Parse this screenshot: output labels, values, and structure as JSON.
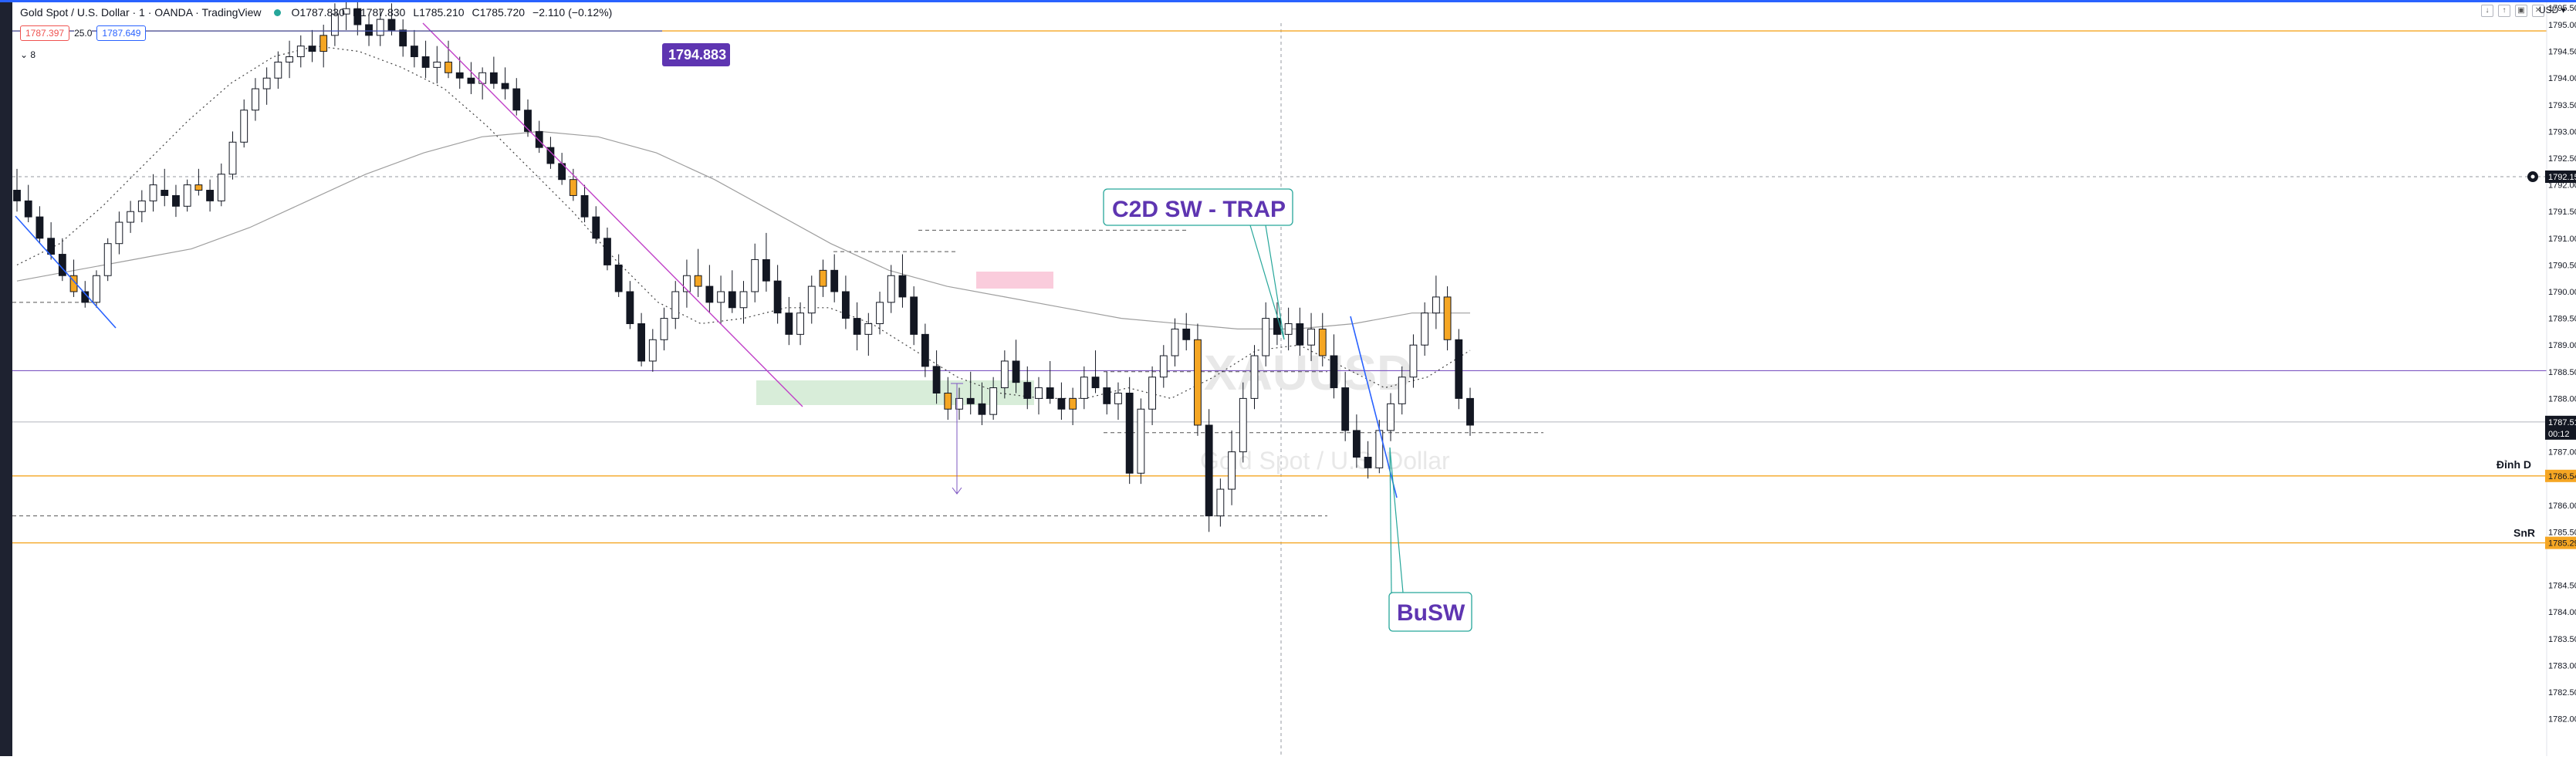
{
  "header": {
    "symbol": "Gold Spot / U.S. Dollar · 1 · OANDA · TradingView",
    "open": "O1787.830",
    "high": "H1787.830",
    "low": "L1785.210",
    "close": "C1785.720",
    "change": "−2.110 (−0.12%)",
    "sell_price": "1787.397",
    "spread": "25.0",
    "buy_price": "1787.649",
    "collapse_label": "8"
  },
  "colors": {
    "up": "#ffffff",
    "down": "#131722",
    "accent_orange": "#f5a623",
    "horizontal_purple": "#7e57c2",
    "trend_purple": "#c040c8",
    "annotation": "#26a69a",
    "annotation_text": "#5e35b1"
  },
  "annotations": {
    "c2d": "C2D SW - TRAP",
    "busw": "BuSW",
    "dinh": "Đỉnh D",
    "snr": "SnR",
    "price_label": "1794.883",
    "watermark_symbol": "XAUUSD",
    "watermark_desc": "Gold Spot / U.S. Dollar"
  },
  "chart_data": {
    "type": "candlestick",
    "title": "Gold Spot / U.S. Dollar · 1 · OANDA · TradingView",
    "ylim": [
      1781.7,
      1795.8
    ],
    "y_ticks": [
      "1795.000",
      "1794.500",
      "1794.000",
      "1793.500",
      "1793.000",
      "1792.500",
      "1792.000",
      "1791.500",
      "1791.000",
      "1790.500",
      "1790.000",
      "1789.500",
      "1789.000",
      "1788.500",
      "1788.000",
      "1787.000",
      "1786.000",
      "1785.500",
      "1784.500",
      "1784.000",
      "1783.500",
      "1783.000",
      "1782.500",
      "1782.000"
    ],
    "price_labels": {
      "current": "1787.515",
      "countdown": "00:12",
      "crosshair": "1792.153",
      "dinh_d": "1786.549",
      "snr": "1785.295",
      "top_cut": "1795.500"
    },
    "horizontal_levels": [
      {
        "name": "1794.883",
        "value": 1794.883
      },
      {
        "name": "Đỉnh D",
        "value": 1786.549
      },
      {
        "name": "SnR",
        "value": 1785.295
      },
      {
        "name": "purple",
        "value": 1788.52
      },
      {
        "name": "crosshair",
        "value": 1792.153
      }
    ],
    "ohlc": [
      [
        1791.9,
        1792.3,
        1791.5,
        1791.7
      ],
      [
        1791.7,
        1792.0,
        1791.3,
        1791.4
      ],
      [
        1791.4,
        1791.6,
        1790.9,
        1791.0
      ],
      [
        1791.0,
        1791.3,
        1790.6,
        1790.7
      ],
      [
        1790.7,
        1791.0,
        1790.2,
        1790.3
      ],
      [
        1790.3,
        1790.6,
        1789.9,
        1790.0
      ],
      [
        1790.0,
        1790.2,
        1789.7,
        1789.8
      ],
      [
        1789.8,
        1790.4,
        1789.7,
        1790.3
      ],
      [
        1790.3,
        1791.0,
        1790.2,
        1790.9
      ],
      [
        1790.9,
        1791.5,
        1790.7,
        1791.3
      ],
      [
        1791.3,
        1791.7,
        1791.1,
        1791.5
      ],
      [
        1791.5,
        1791.9,
        1791.3,
        1791.7
      ],
      [
        1791.7,
        1792.2,
        1791.5,
        1792.0
      ],
      [
        1791.9,
        1792.3,
        1791.6,
        1791.8
      ],
      [
        1791.8,
        1792.0,
        1791.4,
        1791.6
      ],
      [
        1791.6,
        1792.1,
        1791.5,
        1792.0
      ],
      [
        1792.0,
        1792.3,
        1791.8,
        1791.9
      ],
      [
        1791.9,
        1792.1,
        1791.5,
        1791.7
      ],
      [
        1791.7,
        1792.4,
        1791.6,
        1792.2
      ],
      [
        1792.2,
        1793.0,
        1792.1,
        1792.8
      ],
      [
        1792.8,
        1793.6,
        1792.7,
        1793.4
      ],
      [
        1793.4,
        1794.0,
        1793.2,
        1793.8
      ],
      [
        1793.8,
        1794.2,
        1793.5,
        1794.0
      ],
      [
        1794.0,
        1794.5,
        1793.8,
        1794.3
      ],
      [
        1794.3,
        1794.7,
        1794.0,
        1794.4
      ],
      [
        1794.4,
        1794.8,
        1794.2,
        1794.6
      ],
      [
        1794.6,
        1794.9,
        1794.3,
        1794.5
      ],
      [
        1794.5,
        1795.0,
        1794.2,
        1794.8
      ],
      [
        1794.8,
        1795.4,
        1794.6,
        1795.2
      ],
      [
        1795.2,
        1795.6,
        1794.9,
        1795.3
      ],
      [
        1795.3,
        1795.5,
        1794.8,
        1795.0
      ],
      [
        1795.0,
        1795.2,
        1794.6,
        1794.8
      ],
      [
        1794.8,
        1795.3,
        1794.6,
        1795.1
      ],
      [
        1795.1,
        1795.4,
        1794.8,
        1794.9
      ],
      [
        1794.9,
        1795.1,
        1794.4,
        1794.6
      ],
      [
        1794.6,
        1794.9,
        1794.2,
        1794.4
      ],
      [
        1794.4,
        1794.7,
        1794.0,
        1794.2
      ],
      [
        1794.2,
        1794.6,
        1793.9,
        1794.3
      ],
      [
        1794.3,
        1794.7,
        1794.0,
        1794.1
      ],
      [
        1794.1,
        1794.4,
        1793.8,
        1794.0
      ],
      [
        1794.0,
        1794.3,
        1793.7,
        1793.9
      ],
      [
        1793.9,
        1794.2,
        1793.6,
        1794.1
      ],
      [
        1794.1,
        1794.4,
        1793.8,
        1793.9
      ],
      [
        1793.9,
        1794.2,
        1793.6,
        1793.8
      ],
      [
        1793.8,
        1794.0,
        1793.3,
        1793.4
      ],
      [
        1793.4,
        1793.6,
        1792.9,
        1793.0
      ],
      [
        1793.0,
        1793.2,
        1792.6,
        1792.7
      ],
      [
        1792.7,
        1792.9,
        1792.3,
        1792.4
      ],
      [
        1792.4,
        1792.6,
        1792.0,
        1792.1
      ],
      [
        1792.1,
        1792.3,
        1791.7,
        1791.8
      ],
      [
        1791.8,
        1792.0,
        1791.3,
        1791.4
      ],
      [
        1791.4,
        1791.6,
        1790.9,
        1791.0
      ],
      [
        1791.0,
        1791.2,
        1790.4,
        1790.5
      ],
      [
        1790.5,
        1790.7,
        1789.9,
        1790.0
      ],
      [
        1790.0,
        1790.2,
        1789.3,
        1789.4
      ],
      [
        1789.4,
        1789.6,
        1788.6,
        1788.7
      ],
      [
        1788.7,
        1789.3,
        1788.5,
        1789.1
      ],
      [
        1789.1,
        1789.7,
        1788.9,
        1789.5
      ],
      [
        1789.5,
        1790.2,
        1789.3,
        1790.0
      ],
      [
        1790.0,
        1790.6,
        1789.7,
        1790.3
      ],
      [
        1790.3,
        1790.8,
        1789.9,
        1790.1
      ],
      [
        1790.1,
        1790.5,
        1789.6,
        1789.8
      ],
      [
        1789.8,
        1790.3,
        1789.4,
        1790.0
      ],
      [
        1790.0,
        1790.4,
        1789.6,
        1789.7
      ],
      [
        1789.7,
        1790.2,
        1789.4,
        1790.0
      ],
      [
        1790.0,
        1790.9,
        1789.8,
        1790.6
      ],
      [
        1790.6,
        1791.1,
        1790.0,
        1790.2
      ],
      [
        1790.2,
        1790.5,
        1789.4,
        1789.6
      ],
      [
        1789.6,
        1789.9,
        1789.0,
        1789.2
      ],
      [
        1789.2,
        1789.8,
        1789.0,
        1789.6
      ],
      [
        1789.6,
        1790.3,
        1789.4,
        1790.1
      ],
      [
        1790.1,
        1790.6,
        1789.9,
        1790.4
      ],
      [
        1790.4,
        1790.7,
        1789.8,
        1790.0
      ],
      [
        1790.0,
        1790.3,
        1789.3,
        1789.5
      ],
      [
        1789.5,
        1789.8,
        1788.9,
        1789.2
      ],
      [
        1789.2,
        1789.6,
        1788.8,
        1789.4
      ],
      [
        1789.4,
        1790.0,
        1789.2,
        1789.8
      ],
      [
        1789.8,
        1790.5,
        1789.6,
        1790.3
      ],
      [
        1790.3,
        1790.7,
        1789.7,
        1789.9
      ],
      [
        1789.9,
        1790.1,
        1789.0,
        1789.2
      ],
      [
        1789.2,
        1789.4,
        1788.4,
        1788.6
      ],
      [
        1788.6,
        1788.9,
        1787.9,
        1788.1
      ],
      [
        1788.1,
        1788.4,
        1787.6,
        1787.8
      ],
      [
        1787.8,
        1788.2,
        1787.6,
        1788.0
      ],
      [
        1788.0,
        1788.5,
        1787.7,
        1787.9
      ],
      [
        1787.9,
        1788.3,
        1787.5,
        1787.7
      ],
      [
        1787.7,
        1788.4,
        1787.6,
        1788.2
      ],
      [
        1788.2,
        1788.9,
        1788.0,
        1788.7
      ],
      [
        1788.7,
        1789.1,
        1788.1,
        1788.3
      ],
      [
        1788.3,
        1788.6,
        1787.8,
        1788.0
      ],
      [
        1788.0,
        1788.4,
        1787.7,
        1788.2
      ],
      [
        1788.2,
        1788.7,
        1787.9,
        1788.0
      ],
      [
        1788.0,
        1788.3,
        1787.6,
        1787.8
      ],
      [
        1787.8,
        1788.2,
        1787.5,
        1788.0
      ],
      [
        1788.0,
        1788.6,
        1787.8,
        1788.4
      ],
      [
        1788.4,
        1788.9,
        1788.1,
        1788.2
      ],
      [
        1788.2,
        1788.5,
        1787.7,
        1787.9
      ],
      [
        1787.9,
        1788.3,
        1787.6,
        1788.1
      ],
      [
        1788.1,
        1788.4,
        1786.4,
        1786.6
      ],
      [
        1786.6,
        1788.0,
        1786.4,
        1787.8
      ],
      [
        1787.8,
        1788.6,
        1787.5,
        1788.4
      ],
      [
        1788.4,
        1789.0,
        1788.2,
        1788.8
      ],
      [
        1788.8,
        1789.5,
        1788.6,
        1789.3
      ],
      [
        1789.3,
        1789.6,
        1788.9,
        1789.1
      ],
      [
        1789.1,
        1789.4,
        1787.3,
        1787.5
      ],
      [
        1787.5,
        1787.8,
        1785.5,
        1785.8
      ],
      [
        1785.8,
        1786.5,
        1785.6,
        1786.3
      ],
      [
        1786.3,
        1787.4,
        1786.0,
        1787.0
      ],
      [
        1787.0,
        1788.3,
        1786.8,
        1788.0
      ],
      [
        1788.0,
        1789.0,
        1787.8,
        1788.8
      ],
      [
        1788.8,
        1789.8,
        1788.6,
        1789.5
      ],
      [
        1789.5,
        1789.8,
        1789.0,
        1789.2
      ],
      [
        1789.2,
        1789.7,
        1788.9,
        1789.4
      ],
      [
        1789.4,
        1789.7,
        1788.8,
        1789.0
      ],
      [
        1789.0,
        1789.6,
        1788.7,
        1789.3
      ],
      [
        1789.3,
        1789.6,
        1788.6,
        1788.8
      ],
      [
        1788.8,
        1789.2,
        1788.0,
        1788.2
      ],
      [
        1788.2,
        1788.5,
        1787.2,
        1787.4
      ],
      [
        1787.4,
        1787.7,
        1786.7,
        1786.9
      ],
      [
        1786.9,
        1787.2,
        1786.5,
        1786.7
      ],
      [
        1786.7,
        1787.6,
        1786.6,
        1787.4
      ],
      [
        1787.4,
        1788.1,
        1787.2,
        1787.9
      ],
      [
        1787.9,
        1788.6,
        1787.7,
        1788.4
      ],
      [
        1788.4,
        1789.2,
        1788.2,
        1789.0
      ],
      [
        1789.0,
        1789.8,
        1788.8,
        1789.6
      ],
      [
        1789.6,
        1790.3,
        1789.3,
        1789.9
      ],
      [
        1789.9,
        1790.1,
        1788.9,
        1789.1
      ],
      [
        1789.1,
        1789.3,
        1787.8,
        1788.0
      ],
      [
        1788.0,
        1788.2,
        1787.3,
        1787.5
      ]
    ],
    "moving_average_dotted": [
      1790.5,
      1790.9,
      1791.6,
      1792.4,
      1793.2,
      1793.9,
      1794.4,
      1794.6,
      1794.5,
      1794.2,
      1793.8,
      1793.1,
      1792.3,
      1791.5,
      1790.6,
      1789.8,
      1789.4,
      1789.5,
      1789.7,
      1789.7,
      1789.4,
      1788.9,
      1788.4,
      1788.1,
      1788.0,
      1788.0,
      1788.2,
      1788.0,
      1788.4,
      1788.9,
      1789.0,
      1788.6,
      1788.2,
      1788.4,
      1788.9
    ],
    "moving_average_slow": [
      1790.2,
      1790.4,
      1790.6,
      1790.8,
      1791.2,
      1791.7,
      1792.2,
      1792.6,
      1792.9,
      1793.0,
      1792.9,
      1792.6,
      1792.1,
      1791.5,
      1790.9,
      1790.4,
      1790.1,
      1789.9,
      1789.7,
      1789.5,
      1789.4,
      1789.3,
      1789.3,
      1789.4,
      1789.6,
      1789.6
    ]
  }
}
